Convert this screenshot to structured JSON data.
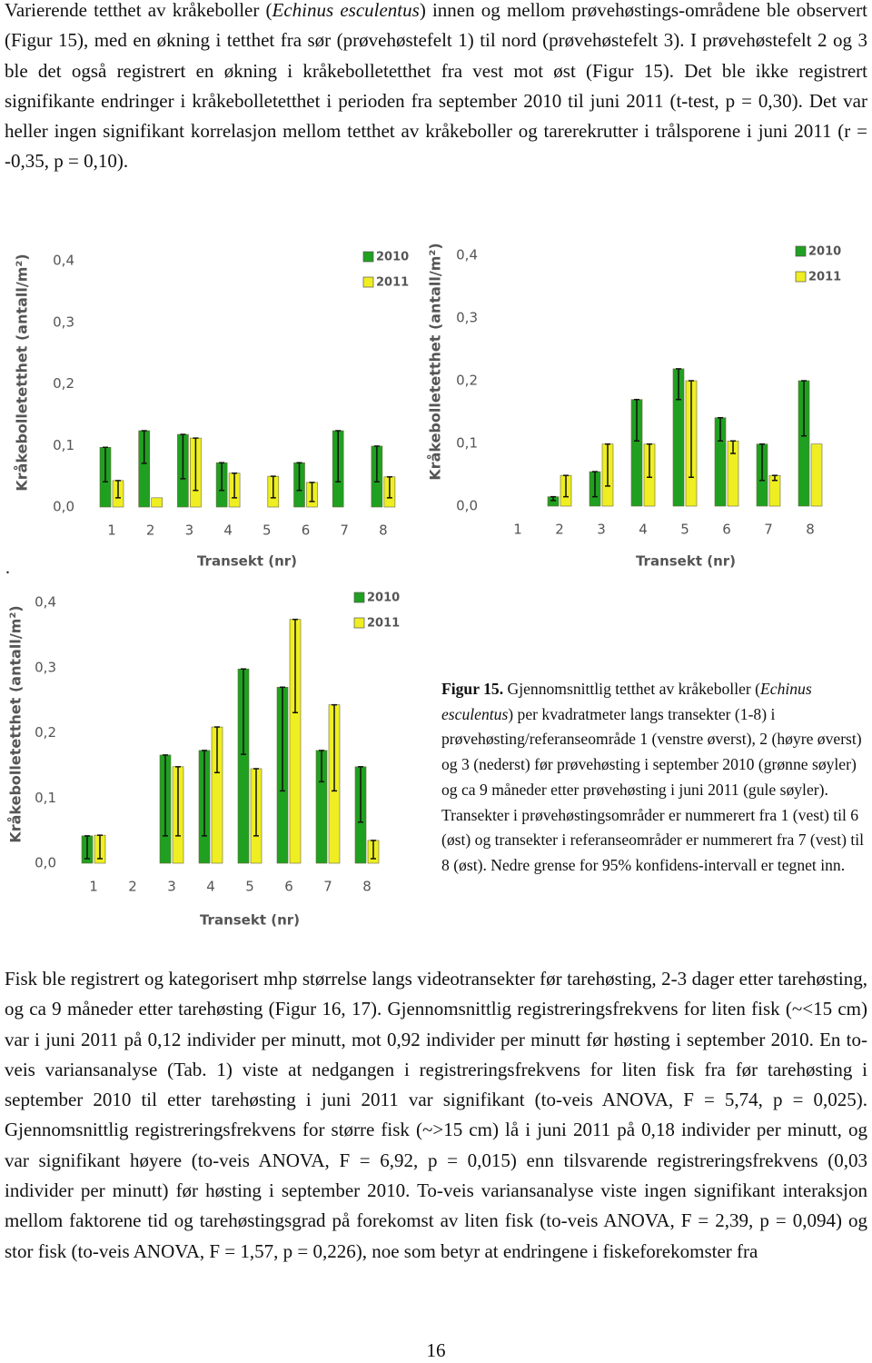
{
  "paragraph_top": [
    "Varierende tetthet av kråkeboller (",
    "Echinus esculentus",
    ") innen og mellom prøvehøstings-områdene ble observert (Figur 15), med en økning i tetthet fra sør (prøvehøstefelt 1) til nord (prøvehøstefelt 3). I prøvehøstefelt 2 og 3 ble det også registrert en økning i kråkebolletetthet fra vest mot øst (Figur 15). Det ble ikke registrert signifikante endringer i kråkebolletetthet i perioden fra september 2010 til juni 2011 (t-test, p = 0,30). Det var heller ingen signifikant korrelasjon mellom tetthet av kråkeboller og tarerekrutter i trålsporene i juni 2011 (r = -0,35, p = 0,10)."
  ],
  "separator": ".",
  "chart_data": [
    {
      "type": "bar",
      "y_label": "Kråkebolletetthet (antall/m²)",
      "x_label": "Transekt (nr)",
      "categories": [
        "1",
        "2",
        "3",
        "4",
        "5",
        "6",
        "7",
        "8"
      ],
      "ylim": [
        0,
        0.4
      ],
      "yticks": [
        {
          "value": 0,
          "label": "0,0"
        },
        {
          "value": 0.1,
          "label": "0,1"
        },
        {
          "value": 0.2,
          "label": "0,2"
        },
        {
          "value": 0.3,
          "label": "0,3"
        },
        {
          "value": 0.4,
          "label": "0,4"
        }
      ],
      "series": [
        {
          "name": "2010",
          "color": "#20a020",
          "values": [
            0.097,
            0.124,
            0.118,
            0.072,
            null,
            0.072,
            0.124,
            0.099
          ],
          "ci_lower": [
            0.041,
            0.071,
            0.046,
            0.027,
            null,
            0.027,
            0.041,
            0.041
          ]
        },
        {
          "name": "2011",
          "color": "#eeee22",
          "values": [
            0.043,
            0.015,
            0.112,
            0.055,
            0.05,
            0.04,
            null,
            0.049
          ],
          "ci_lower": [
            0.015,
            null,
            0.027,
            0.015,
            0.015,
            0.009,
            null,
            0.015
          ]
        }
      ]
    },
    {
      "type": "bar",
      "y_label": "Kråkebolletetthet (antall/m²)",
      "x_label": "Transekt (nr)",
      "categories": [
        "1",
        "2",
        "3",
        "4",
        "5",
        "6",
        "7",
        "8"
      ],
      "ylim": [
        0,
        0.4
      ],
      "yticks": [
        {
          "value": 0,
          "label": "0,0"
        },
        {
          "value": 0.1,
          "label": "0,1"
        },
        {
          "value": 0.2,
          "label": "0,2"
        },
        {
          "value": 0.3,
          "label": "0,3"
        },
        {
          "value": 0.4,
          "label": "0,4"
        }
      ],
      "series": [
        {
          "name": "2010",
          "color": "#20a020",
          "values": [
            null,
            0.015,
            0.055,
            0.17,
            0.219,
            0.141,
            0.099,
            0.2
          ],
          "ci_lower": [
            null,
            0.009,
            0.015,
            0.104,
            0.17,
            0.104,
            0.041,
            0.112
          ]
        },
        {
          "name": "2011",
          "color": "#eeee22",
          "values": [
            null,
            0.049,
            0.099,
            0.099,
            0.2,
            0.104,
            0.049,
            0.099
          ],
          "ci_lower": [
            null,
            0.015,
            0.032,
            0.046,
            0.046,
            0.084,
            0.041,
            null
          ]
        }
      ]
    },
    {
      "type": "bar",
      "y_label": "Kråkebolletetthet (antall/m²)",
      "x_label": "Transekt (nr)",
      "categories": [
        "1",
        "2",
        "3",
        "4",
        "5",
        "6",
        "7",
        "8"
      ],
      "ylim": [
        0,
        0.4
      ],
      "yticks": [
        {
          "value": 0,
          "label": "0,0"
        },
        {
          "value": 0.1,
          "label": "0,1"
        },
        {
          "value": 0.2,
          "label": "0,2"
        },
        {
          "value": 0.3,
          "label": "0,3"
        },
        {
          "value": 0.4,
          "label": "0,4"
        }
      ],
      "series": [
        {
          "name": "2010",
          "color": "#20a020",
          "values": [
            0.042,
            null,
            0.166,
            0.173,
            0.298,
            0.27,
            0.173,
            0.148
          ],
          "ci_lower": [
            0.007,
            null,
            0.042,
            0.042,
            0.167,
            0.111,
            0.125,
            0.063
          ]
        },
        {
          "name": "2011",
          "color": "#eeee22",
          "values": [
            0.043,
            null,
            0.148,
            0.209,
            0.145,
            0.374,
            0.243,
            0.035
          ],
          "ci_lower": [
            0.007,
            null,
            0.042,
            0.139,
            0.042,
            0.231,
            0.111,
            0.007
          ]
        }
      ]
    }
  ],
  "caption": {
    "label": "Figur 15.",
    "parts": [
      " Gjennomsnittlig tetthet av kråkeboller (",
      "Echinus esculentus",
      ") per kvadratmeter langs transekter (1-8) i prøvehøsting/referanseområde 1 (venstre øverst), 2 (høyre øverst) og 3 (nederst) før prøvehøsting i september 2010 (grønne søyler) og ca 9 måneder etter prøvehøsting i juni 2011 (gule søyler). Transekter i prøvehøstingsområder er nummerert fra 1 (vest) til 6 (øst) og transekter i referanseområder er nummerert fra 7 (vest) til 8 (øst). Nedre grense for 95% konfidens-intervall er tegnet inn."
    ]
  },
  "paragraph_bottom": [
    "Fisk ble registrert og kategorisert mhp størrelse langs videotransekter før tarehøsting, 2-3 dager etter tarehøsting, og ca 9 måneder etter tarehøsting (Figur 16, 17). Gjennomsnittlig registreringsfrekvens for liten fisk (~<15 cm) var i juni 2011 på 0,12 individer per minutt, mot 0,92 individer per minutt før høsting i september 2010. En to-veis variansanalyse (Tab. 1) viste at nedgangen i registreringsfrekvens for liten fisk fra før tarehøsting i september 2010 til etter tarehøsting i juni 2011 var signifikant (to-veis ANOVA, F = 5,74, p = 0,025). Gjennomsnittlig registreringsfrekvens for større fisk (~>15 cm) lå i juni 2011 på 0,18 individer per minutt, og var signifikant høyere (to-veis ANOVA, F = 6,92, p = 0,015) enn tilsvarende registreringsfrekvens (0,03 individer per minutt) før høsting i september 2010. To-veis variansanalyse viste ingen signifikant interaksjon mellom faktorene tid og tarehøstingsgrad på forekomst av liten fisk (to-veis ANOVA, F = 2,39, p = 0,094) og stor fisk (to-veis ANOVA, F = 1,57, p = 0,226), noe som betyr at endringene i fiskeforekomster fra"
  ],
  "page_number": "16"
}
